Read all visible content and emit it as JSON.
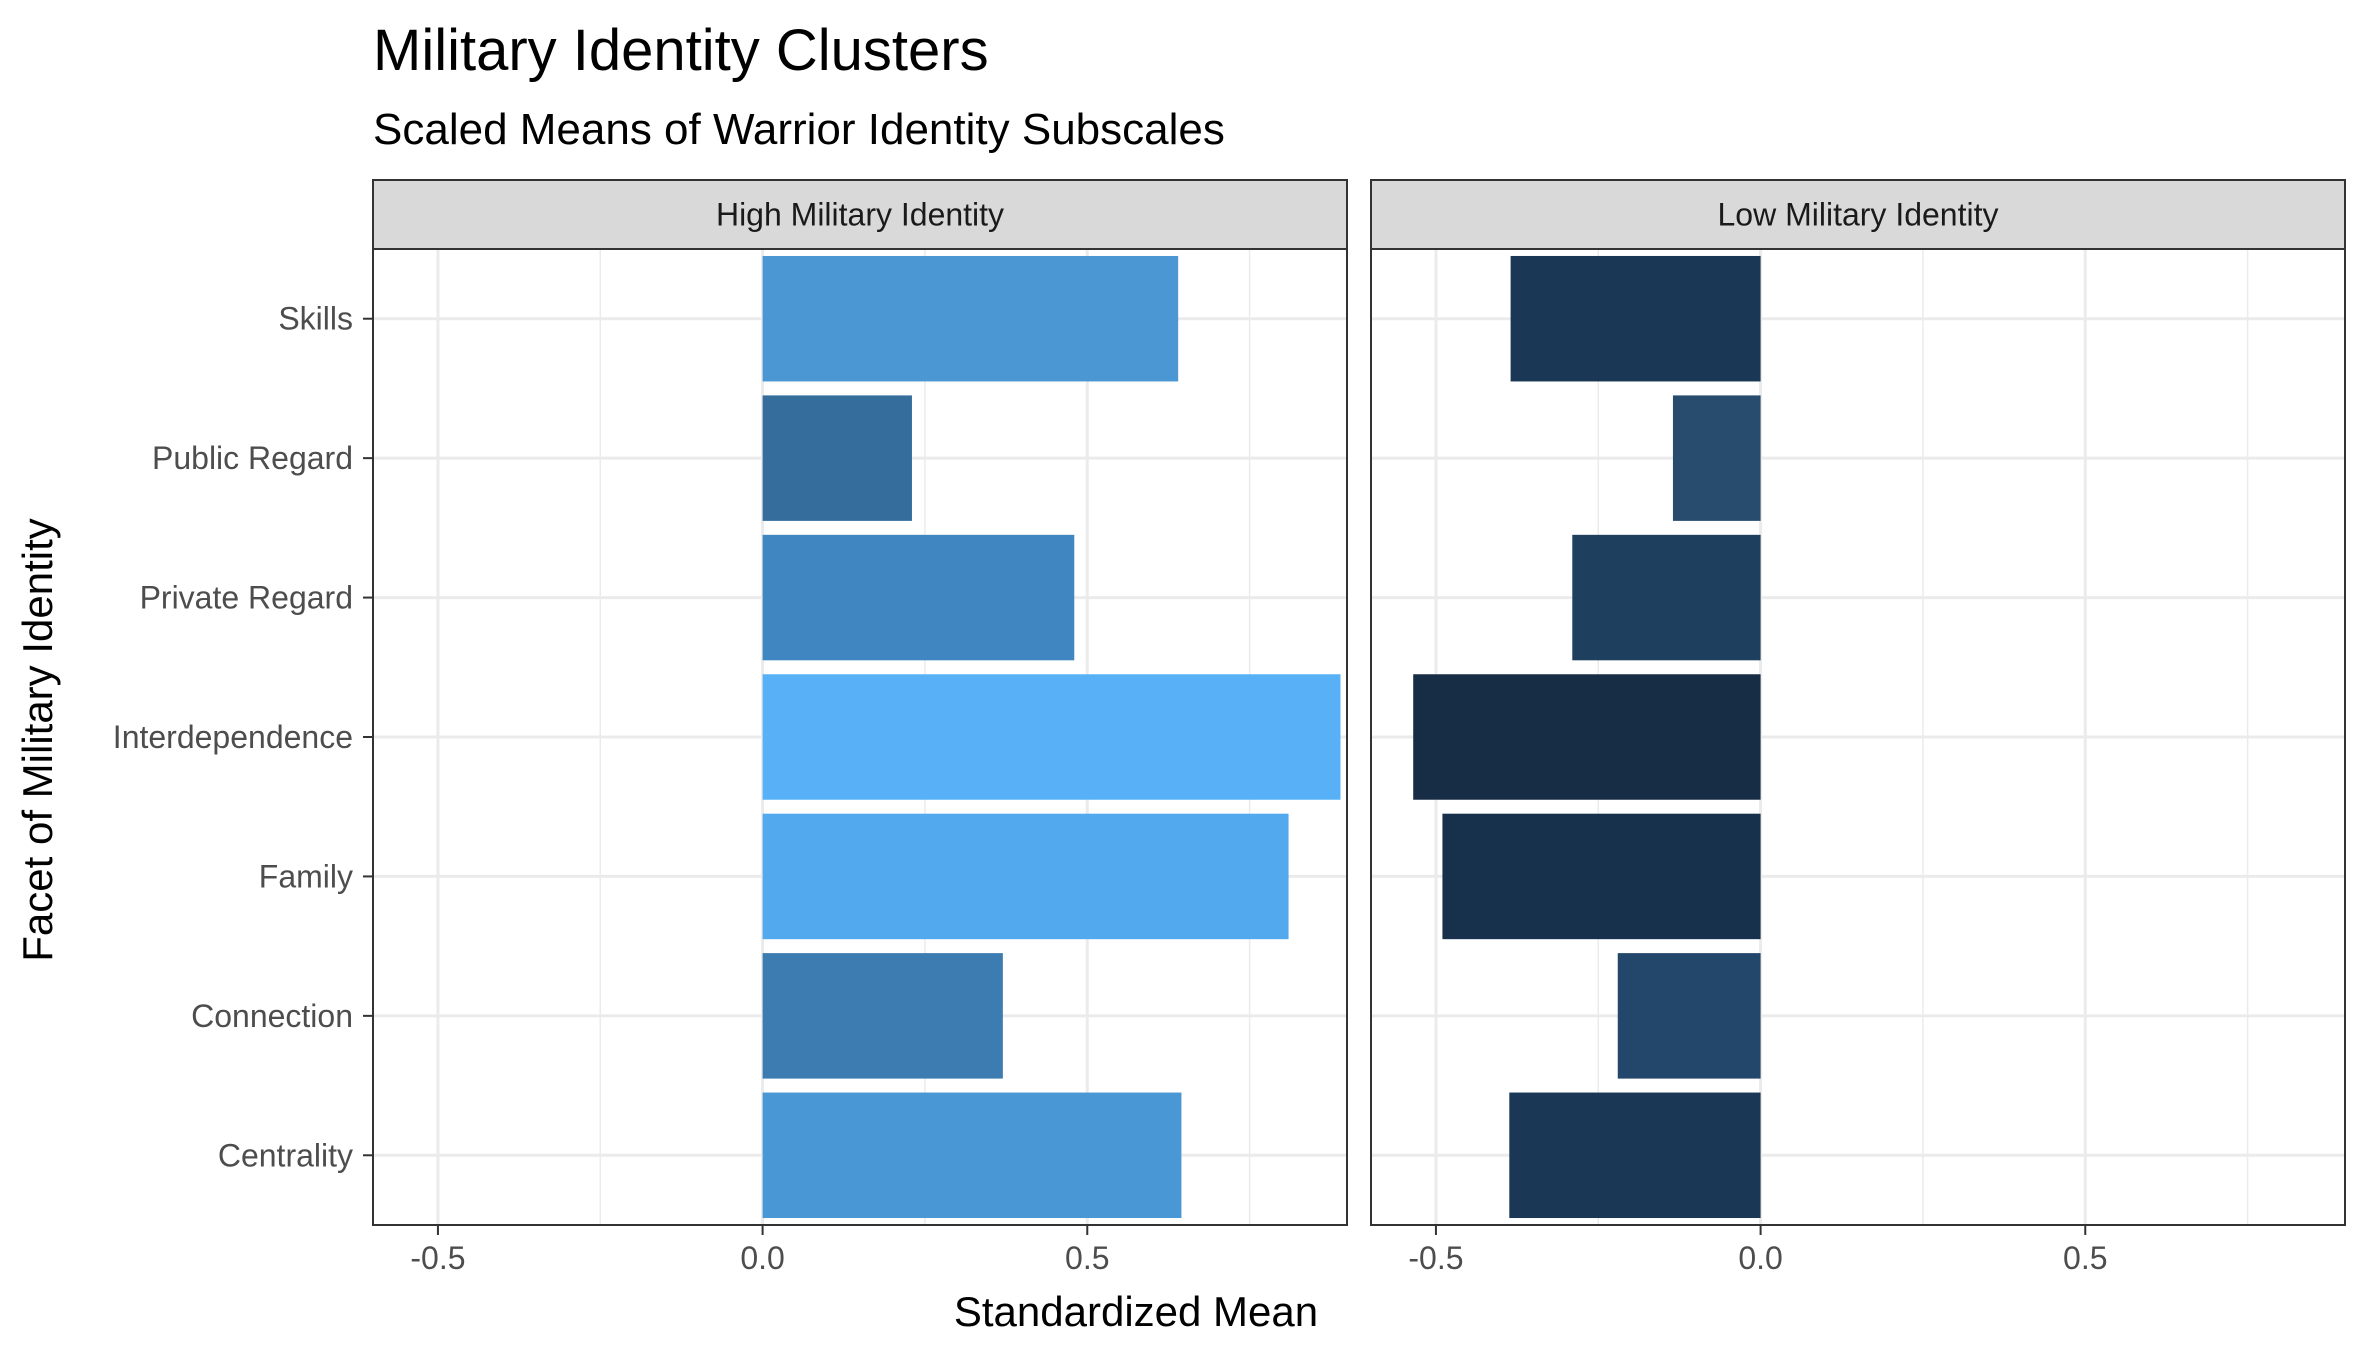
{
  "title": "Military Identity Clusters",
  "subtitle": "Scaled Means of Warrior Identity Subscales",
  "chart_data": {
    "type": "bar",
    "orientation": "horizontal",
    "xlabel": "Standardized Mean",
    "ylabel": "Facet of Military Identity",
    "xlim": [
      -0.6,
      0.9
    ],
    "x_ticks": [
      -0.5,
      0.0,
      0.5
    ],
    "x_tick_labels": [
      "-0.5",
      "0.0",
      "0.5"
    ],
    "grid": true,
    "legend": "none",
    "categories": [
      "Skills",
      "Public Regard",
      "Private Regard",
      "Interdependence",
      "Family",
      "Connection",
      "Centrality"
    ],
    "facets": [
      {
        "name": "High Military Identity",
        "values": [
          0.64,
          0.23,
          0.48,
          0.89,
          0.81,
          0.37,
          0.645
        ],
        "colors": [
          "#4a97d4",
          "#356d9c",
          "#4087c2",
          "#58b1f7",
          "#53a9ee",
          "#3d7cb0",
          "#4a97d5"
        ]
      },
      {
        "name": "Low Military Identity",
        "values": [
          -0.385,
          -0.135,
          -0.29,
          -0.535,
          -0.49,
          -0.22,
          -0.387
        ],
        "colors": [
          "#1b3756",
          "#274c6e",
          "#1f3f5f",
          "#172c45",
          "#17304b",
          "#22476a",
          "#1b3756"
        ]
      }
    ]
  }
}
